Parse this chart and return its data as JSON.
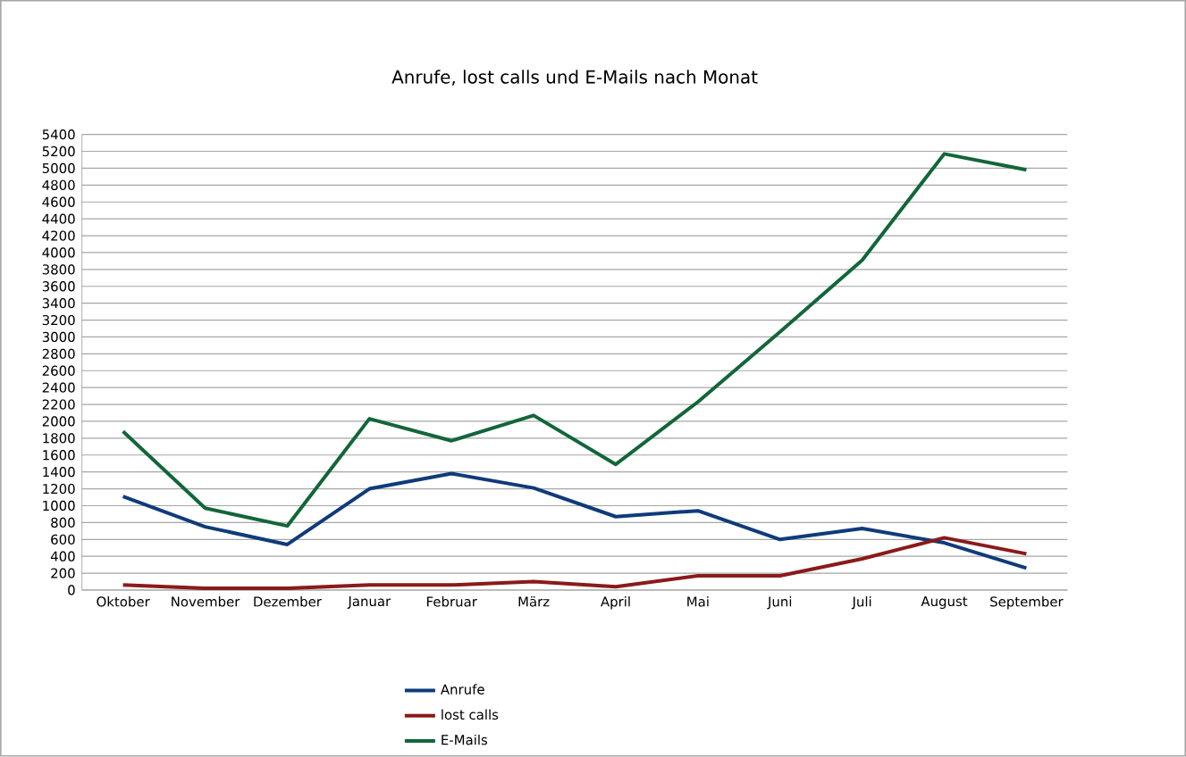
{
  "chart_data": {
    "type": "line",
    "title": "Anrufe, lost calls und E-Mails nach Monat",
    "categories": [
      "Oktober",
      "November",
      "Dezember",
      "Januar",
      "Februar",
      "März",
      "April",
      "Mai",
      "Juni",
      "Juli",
      "August",
      "September"
    ],
    "series": [
      {
        "name": "Anrufe",
        "color": "#0f3b7a",
        "values": [
          1110,
          750,
          540,
          1200,
          1380,
          1210,
          870,
          940,
          600,
          730,
          560,
          260
        ]
      },
      {
        "name": "lost calls",
        "color": "#8b1a1a",
        "values": [
          60,
          20,
          20,
          60,
          60,
          100,
          40,
          170,
          170,
          370,
          620,
          430
        ]
      },
      {
        "name": "E-Mails",
        "color": "#12663a",
        "values": [
          1880,
          970,
          760,
          2030,
          1770,
          2070,
          1490,
          2230,
          3060,
          3910,
          5170,
          4980
        ]
      }
    ],
    "ylim": [
      0,
      5400
    ],
    "yticks": [
      0,
      200,
      400,
      600,
      800,
      1000,
      1200,
      1400,
      1600,
      1800,
      2000,
      2200,
      2400,
      2600,
      2800,
      3000,
      3200,
      3400,
      3600,
      3800,
      4000,
      4200,
      4400,
      4600,
      4800,
      5000,
      5200,
      5400
    ],
    "grid": "y",
    "legend": "bottom",
    "marker": "none",
    "line_style": "solid"
  }
}
